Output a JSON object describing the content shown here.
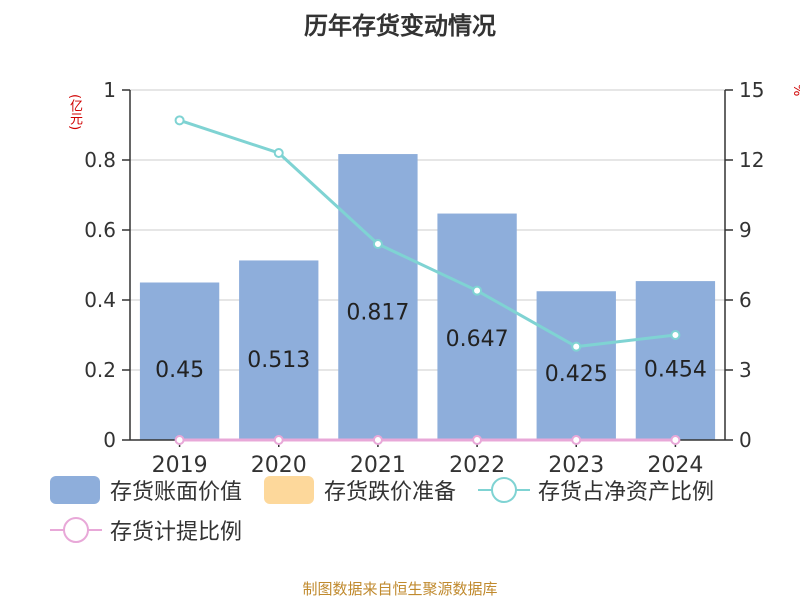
{
  "title": "历年存货变动情况",
  "source": "制图数据来自恒生聚源数据库",
  "chart_data": {
    "type": "bar",
    "categories": [
      "2019",
      "2020",
      "2021",
      "2022",
      "2023",
      "2024"
    ],
    "y_left": {
      "unit": "(亿元)",
      "ylim": [
        0,
        1
      ],
      "ticks": [
        "0",
        "0.2",
        "0.4",
        "0.6",
        "0.8",
        "1"
      ]
    },
    "y_right": {
      "unit": "%",
      "ylim": [
        0,
        15
      ],
      "ticks": [
        "0",
        "3",
        "6",
        "9",
        "12",
        "15"
      ]
    },
    "series": [
      {
        "name": "存货账面价值",
        "type": "bar",
        "axis": "left",
        "color": "#8eaedb",
        "values": [
          0.45,
          0.513,
          0.817,
          0.647,
          0.425,
          0.454
        ],
        "labels": [
          "0.45",
          "0.513",
          "0.817",
          "0.647",
          "0.425",
          "0.454"
        ]
      },
      {
        "name": "存货跌价准备",
        "type": "bar",
        "axis": "left",
        "color": "#fdd89b",
        "values": [
          0,
          0,
          0,
          0,
          0,
          0
        ]
      },
      {
        "name": "存货占净资产比例",
        "type": "line",
        "axis": "right",
        "color": "#7fd3d3",
        "values": [
          13.7,
          12.3,
          8.4,
          6.4,
          4.0,
          4.5
        ]
      },
      {
        "name": "存货计提比例",
        "type": "line",
        "axis": "right",
        "color": "#e8a8d8",
        "values": [
          0,
          0,
          0,
          0,
          0,
          0
        ]
      }
    ],
    "grid": true,
    "legend_position": "bottom"
  }
}
